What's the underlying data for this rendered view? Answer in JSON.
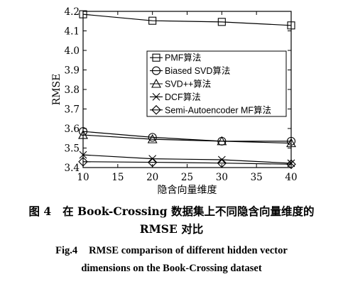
{
  "chart_data": {
    "type": "line",
    "x": [
      10,
      20,
      30,
      40
    ],
    "xlabel": "隐含向量维度",
    "ylabel": "RMSE",
    "xlim": [
      10,
      40
    ],
    "ylim": [
      3.4,
      4.2
    ],
    "xticks": [
      "10",
      "15",
      "20",
      "25",
      "30",
      "35",
      "40"
    ],
    "yticks": [
      "3.4",
      "3.5",
      "3.6",
      "3.7",
      "3.8",
      "3.9",
      "4.0",
      "4.1",
      "4.2"
    ],
    "legend_position": "right-middle",
    "grid": false,
    "series": [
      {
        "name": "PMF算法",
        "marker": "square",
        "values": [
          4.185,
          4.152,
          4.146,
          4.128
        ]
      },
      {
        "name": "Biased SVD算法",
        "marker": "circle",
        "values": [
          3.585,
          3.555,
          3.535,
          3.535
        ]
      },
      {
        "name": "SVD++算法",
        "marker": "triangle",
        "values": [
          3.567,
          3.545,
          3.535,
          3.525
        ]
      },
      {
        "name": "DCF算法",
        "marker": "x",
        "values": [
          3.465,
          3.445,
          3.44,
          3.422
        ]
      },
      {
        "name": "Semi-Autoencoder MF算法",
        "marker": "diamond",
        "values": [
          3.43,
          3.427,
          3.423,
          3.417
        ]
      }
    ]
  },
  "caption": {
    "cn_label": "图 4",
    "cn_line1": "在 Book-Crossing 数据集上不同隐含向量维度的",
    "cn_line2": "RMSE 对比",
    "en_label": "Fig.4",
    "en_line1": "RMSE comparison of different hidden vector",
    "en_line2": "dimensions on the Book-Crossing dataset"
  }
}
